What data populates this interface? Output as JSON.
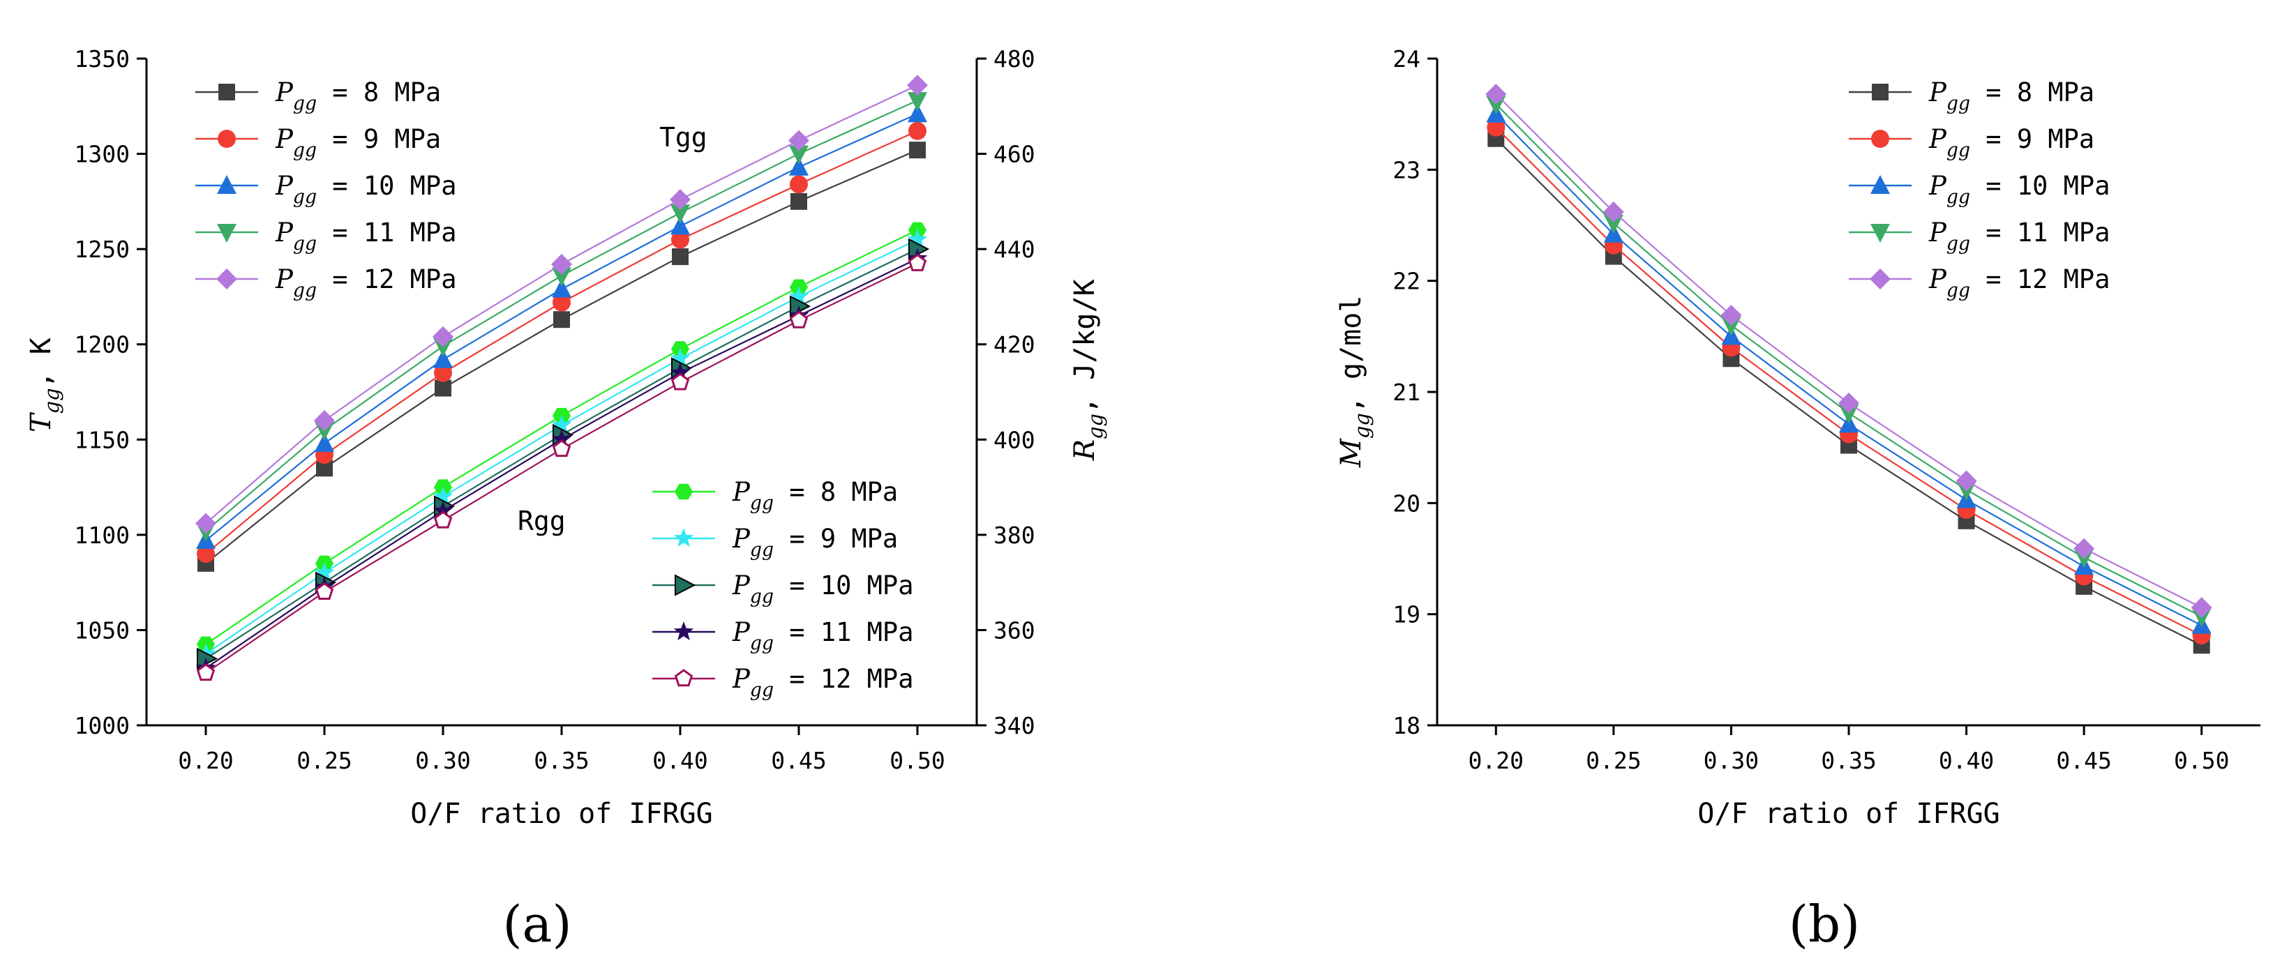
{
  "chart_data": [
    {
      "panel_label": "(a)",
      "type": "line",
      "x": [
        0.2,
        0.25,
        0.3,
        0.35,
        0.4,
        0.45,
        0.5
      ],
      "x_tick_labels": [
        "0.20",
        "0.25",
        "0.30",
        "0.35",
        "0.40",
        "0.45",
        "0.50"
      ],
      "xlabel": "O/F ratio of IFRGG",
      "xlim": [
        0.175,
        0.525
      ],
      "ylabel_left": {
        "symbol": "T",
        "sub": "gg",
        "unit": ",  K"
      },
      "ylim_left": [
        1000,
        1350
      ],
      "y_ticks_left": [
        "1000",
        "1050",
        "1100",
        "1150",
        "1200",
        "1250",
        "1300",
        "1350"
      ],
      "ylabel_right": {
        "symbol": "R",
        "sub": "gg",
        "unit": ",  J/kg/K"
      },
      "ylim_right": [
        340,
        480
      ],
      "y_ticks_right": [
        "340",
        "360",
        "380",
        "400",
        "420",
        "440",
        "460",
        "480"
      ],
      "annotations": [
        "Tgg",
        "Rgg"
      ],
      "legend_tgg_position": "top-left",
      "legend_rgg_position": "bottom-right",
      "series_tgg": [
        {
          "sym": "P",
          "sub": "gg",
          "label": " = 8 MPa",
          "color": "#404040",
          "marker": "square",
          "values": [
            1085,
            1135,
            1177,
            1213,
            1246,
            1275,
            1302
          ]
        },
        {
          "sym": "P",
          "sub": "gg",
          "label": " = 9 MPa",
          "color": "#f03c32",
          "marker": "circle",
          "values": [
            1090,
            1142,
            1185,
            1222,
            1255,
            1284,
            1312
          ]
        },
        {
          "sym": "P",
          "sub": "gg",
          "label": " = 10 MPa",
          "color": "#1e6fd9",
          "marker": "triangle-up",
          "values": [
            1097,
            1148,
            1192,
            1229,
            1262,
            1293,
            1321
          ]
        },
        {
          "sym": "P",
          "sub": "gg",
          "label": " = 11 MPa",
          "color": "#3caa64",
          "marker": "triangle-down",
          "values": [
            1102,
            1155,
            1199,
            1236,
            1269,
            1300,
            1328
          ]
        },
        {
          "sym": "P",
          "sub": "gg",
          "label": " = 12 MPa",
          "color": "#b478dc",
          "marker": "diamond",
          "values": [
            1106,
            1160,
            1204,
            1242,
            1276,
            1307,
            1336
          ]
        }
      ],
      "series_rgg": [
        {
          "sym": "P",
          "sub": "gg",
          "label": " = 8 MPa",
          "color": "#22ee22",
          "marker": "hexagon",
          "values": [
            357,
            374,
            390,
            405,
            419,
            432,
            444
          ]
        },
        {
          "sym": "P",
          "sub": "gg",
          "label": " = 9 MPa",
          "color": "#30e8f0",
          "marker": "star",
          "values": [
            355,
            372,
            388,
            403,
            417,
            430,
            442
          ]
        },
        {
          "sym": "P",
          "sub": "gg",
          "label": " = 10 MPa",
          "color": "#1f6e5e",
          "marker": "triangle-right",
          "values": [
            354,
            370,
            386,
            401,
            415,
            428,
            440
          ]
        },
        {
          "sym": "P",
          "sub": "gg",
          "label": " = 11 MPa",
          "color": "#2a0a5e",
          "marker": "star",
          "values": [
            352,
            369,
            385,
            400,
            414,
            426,
            438
          ]
        },
        {
          "sym": "P",
          "sub": "gg",
          "label": " = 12 MPa",
          "color": "#a0105a",
          "marker": "pentagon-open",
          "values": [
            351,
            368,
            383,
            398,
            412,
            425,
            437
          ]
        }
      ]
    },
    {
      "panel_label": "(b)",
      "type": "line",
      "x": [
        0.2,
        0.25,
        0.3,
        0.35,
        0.4,
        0.45,
        0.5
      ],
      "x_tick_labels": [
        "0.20",
        "0.25",
        "0.30",
        "0.35",
        "0.40",
        "0.45",
        "0.50"
      ],
      "xlabel": "O/F ratio of IFRGG",
      "xlim": [
        0.175,
        0.525
      ],
      "ylabel": {
        "symbol": "M",
        "sub": "gg",
        "unit": ",  g/mol"
      },
      "ylim": [
        18,
        24
      ],
      "y_ticks": [
        "18",
        "19",
        "20",
        "21",
        "22",
        "23",
        "24"
      ],
      "legend_position": "top-right",
      "series": [
        {
          "sym": "P",
          "sub": "gg",
          "label": " = 8 MPa",
          "color": "#404040",
          "marker": "square",
          "values": [
            23.28,
            22.22,
            21.3,
            20.52,
            19.84,
            19.25,
            18.72
          ]
        },
        {
          "sym": "P",
          "sub": "gg",
          "label": " = 9 MPa",
          "color": "#f03c32",
          "marker": "circle",
          "values": [
            23.38,
            22.32,
            21.4,
            20.62,
            19.94,
            19.34,
            18.81
          ]
        },
        {
          "sym": "P",
          "sub": "gg",
          "label": " = 10 MPa",
          "color": "#1e6fd9",
          "marker": "triangle-up",
          "values": [
            23.5,
            22.42,
            21.5,
            20.71,
            20.03,
            19.43,
            18.9
          ]
        },
        {
          "sym": "P",
          "sub": "gg",
          "label": " = 11 MPa",
          "color": "#3caa64",
          "marker": "triangle-down",
          "values": [
            23.59,
            22.52,
            21.6,
            20.81,
            20.12,
            19.51,
            18.98
          ]
        },
        {
          "sym": "P",
          "sub": "gg",
          "label": " = 12 MPa",
          "color": "#b478dc",
          "marker": "diamond",
          "values": [
            23.68,
            22.62,
            21.69,
            20.9,
            20.2,
            19.59,
            19.06
          ]
        }
      ]
    }
  ]
}
